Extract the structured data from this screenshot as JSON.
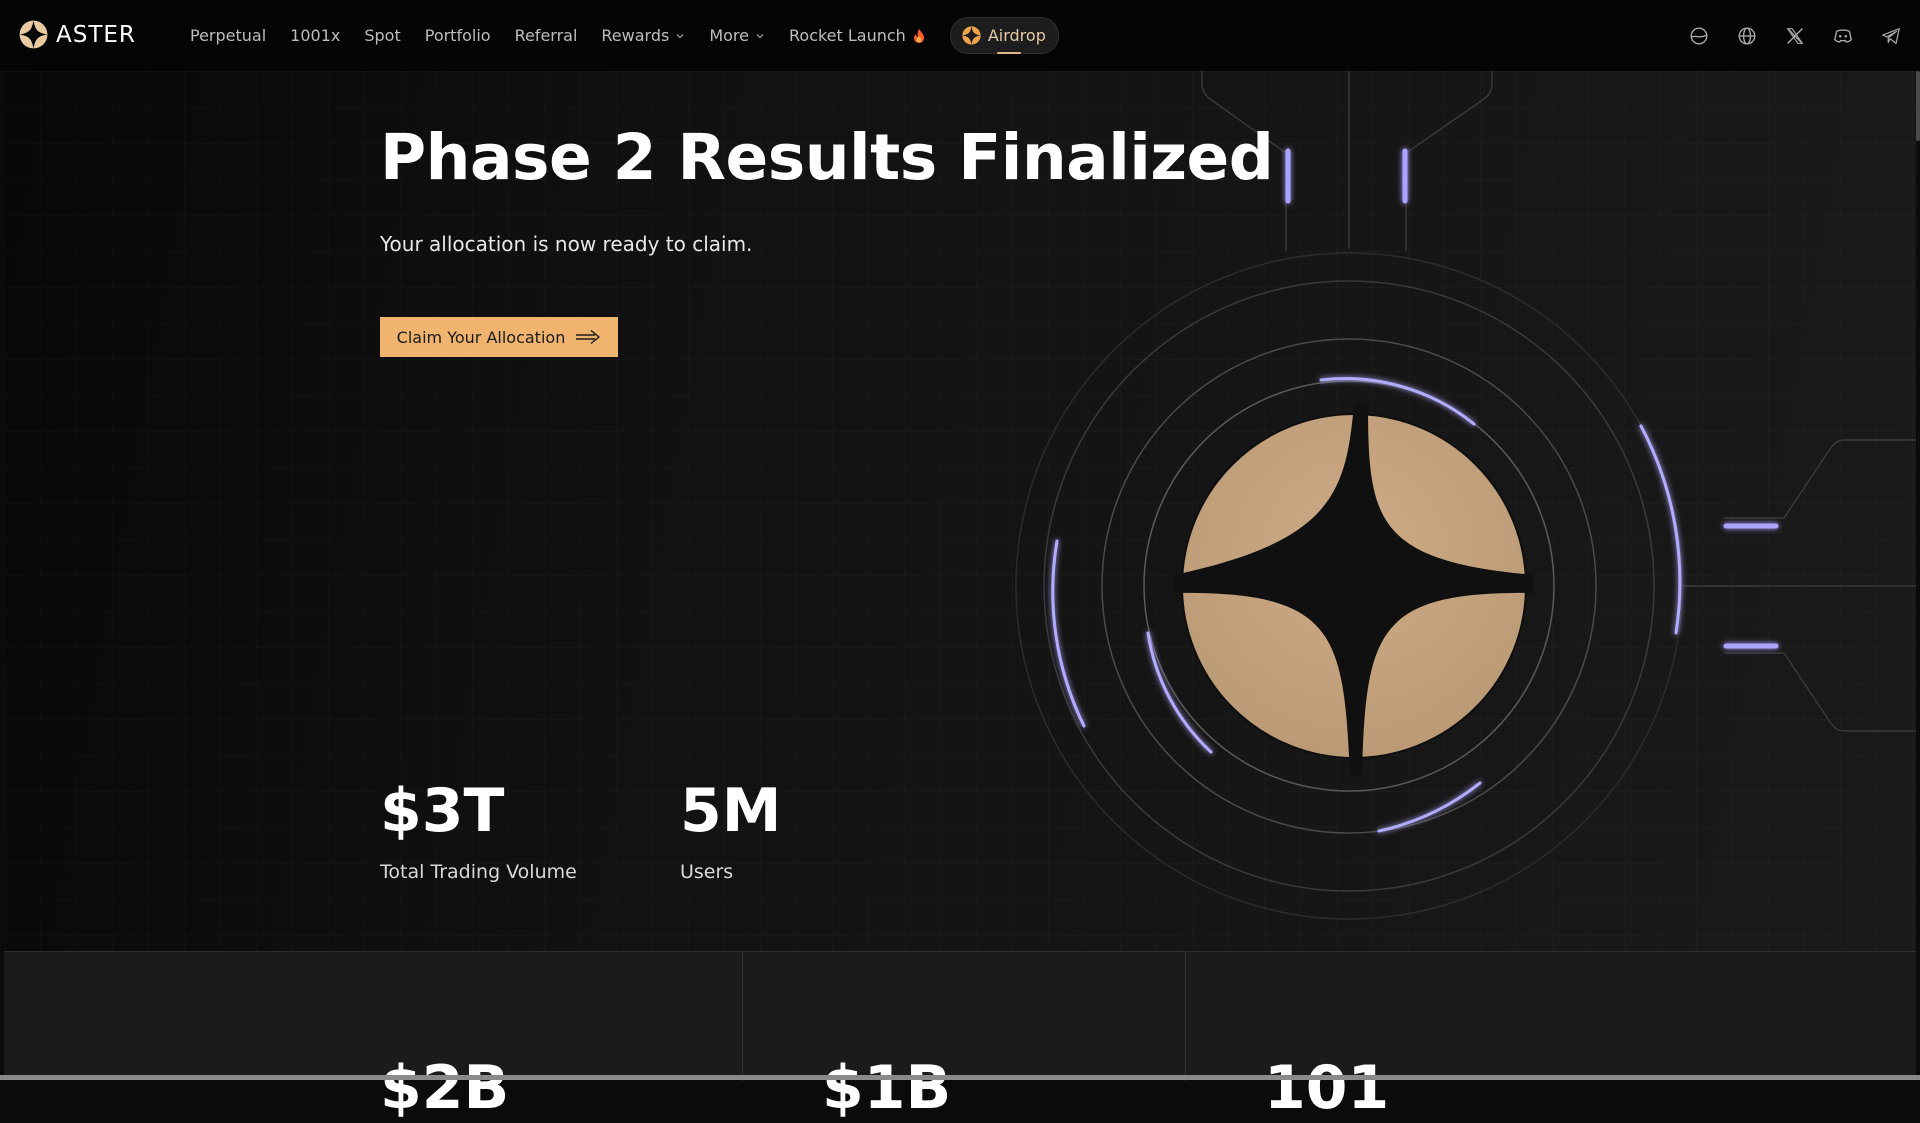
{
  "brand": {
    "name": "ASTER",
    "icon": "aster-logo-icon",
    "color": "#e0b987"
  },
  "nav": {
    "items": [
      {
        "label": "Perpetual",
        "dropdown": false
      },
      {
        "label": "1001x",
        "dropdown": false
      },
      {
        "label": "Spot",
        "dropdown": false
      },
      {
        "label": "Portfolio",
        "dropdown": false
      },
      {
        "label": "Referral",
        "dropdown": false
      },
      {
        "label": "Rewards",
        "dropdown": true
      },
      {
        "label": "More",
        "dropdown": true
      },
      {
        "label": "Rocket Launch",
        "dropdown": false,
        "icon": "flame-icon"
      }
    ],
    "airdrop_label": "Airdrop",
    "icons": [
      "theme-toggle-icon",
      "globe-icon",
      "x-twitter-icon",
      "discord-icon",
      "telegram-icon"
    ]
  },
  "hero": {
    "title": "Phase 2 Results Finalized",
    "subtitle": "Your allocation is now ready to claim.",
    "cta_label": "Claim Your Allocation",
    "accent_color": "#f1b46e"
  },
  "stats": [
    {
      "value": "$3T",
      "label": "Total Trading Volume"
    },
    {
      "value": "5M",
      "label": "Users"
    }
  ],
  "lower_stats": [
    "$2B",
    "$1B",
    "101"
  ]
}
